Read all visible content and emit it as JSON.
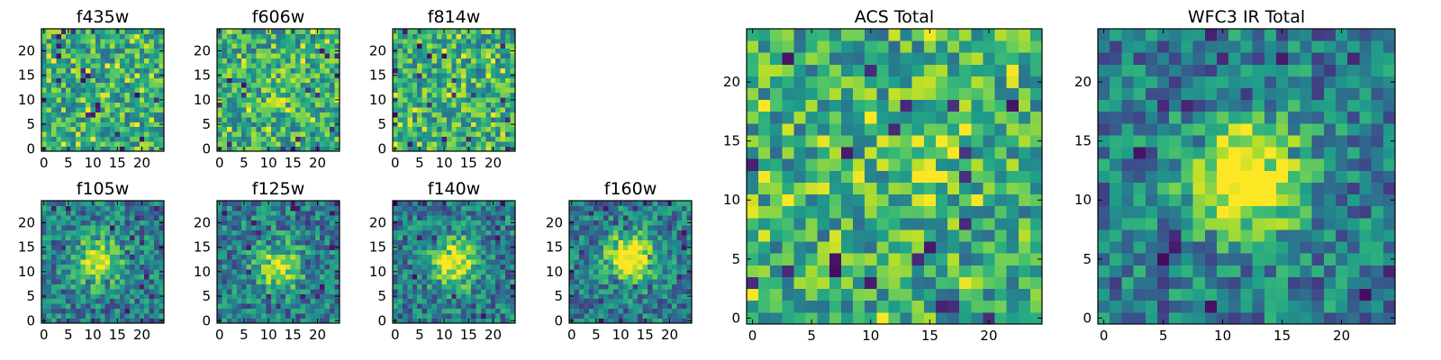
{
  "figure": {
    "background": "#ffffff"
  },
  "colormap": {
    "name": "viridis",
    "stops": [
      "#440154",
      "#482878",
      "#3e4989",
      "#31688e",
      "#26828e",
      "#1f9e89",
      "#35b779",
      "#6ece58",
      "#b5de2b",
      "#fde725"
    ]
  },
  "chart_data": [
    {
      "type": "heatmap",
      "title": "f435w",
      "image_size": [
        25,
        25
      ],
      "profile": "noise",
      "peak_center": [
        12,
        12
      ],
      "peak_strength": 0.0,
      "vmin": 0,
      "vmax": 1,
      "xticks": [
        0,
        5,
        10,
        15,
        20
      ],
      "yticks": [
        0,
        5,
        10,
        15,
        20
      ],
      "origin": "lower",
      "grid": false
    },
    {
      "type": "heatmap",
      "title": "f606w",
      "image_size": [
        25,
        25
      ],
      "profile": "noise",
      "peak_center": [
        12,
        12
      ],
      "peak_strength": 0.1,
      "vmin": 0,
      "vmax": 1,
      "xticks": [
        0,
        5,
        10,
        15,
        20
      ],
      "yticks": [
        0,
        5,
        10,
        15,
        20
      ],
      "origin": "lower",
      "grid": false
    },
    {
      "type": "heatmap",
      "title": "f814w",
      "image_size": [
        25,
        25
      ],
      "profile": "noise",
      "peak_center": [
        12,
        12
      ],
      "peak_strength": 0.1,
      "vmin": 0,
      "vmax": 1,
      "xticks": [
        0,
        5,
        10,
        15,
        20
      ],
      "yticks": [
        0,
        5,
        10,
        15,
        20
      ],
      "origin": "lower",
      "grid": false
    },
    {
      "type": "heatmap",
      "title": "f105w",
      "image_size": [
        25,
        25
      ],
      "profile": "central_source",
      "peak_center": [
        11,
        12
      ],
      "peak_strength": 0.6,
      "vmin": 0,
      "vmax": 1,
      "xticks": [
        0,
        5,
        10,
        15,
        20
      ],
      "yticks": [
        0,
        5,
        10,
        15,
        20
      ],
      "origin": "lower",
      "grid": false
    },
    {
      "type": "heatmap",
      "title": "f125w",
      "image_size": [
        25,
        25
      ],
      "profile": "central_source",
      "peak_center": [
        12,
        11
      ],
      "peak_strength": 0.5,
      "vmin": 0,
      "vmax": 1,
      "xticks": [
        0,
        5,
        10,
        15,
        20
      ],
      "yticks": [
        0,
        5,
        10,
        15,
        20
      ],
      "origin": "lower",
      "grid": false
    },
    {
      "type": "heatmap",
      "title": "f140w",
      "image_size": [
        25,
        25
      ],
      "profile": "central_source",
      "peak_center": [
        12,
        12
      ],
      "peak_strength": 0.65,
      "vmin": 0,
      "vmax": 1,
      "xticks": [
        0,
        5,
        10,
        15,
        20
      ],
      "yticks": [
        0,
        5,
        10,
        15,
        20
      ],
      "origin": "lower",
      "grid": false
    },
    {
      "type": "heatmap",
      "title": "f160w",
      "image_size": [
        25,
        25
      ],
      "profile": "central_source",
      "peak_center": [
        12,
        13
      ],
      "peak_strength": 0.75,
      "vmin": 0,
      "vmax": 1,
      "xticks": [
        0,
        5,
        10,
        15,
        20
      ],
      "yticks": [
        0,
        5,
        10,
        15,
        20
      ],
      "origin": "lower",
      "grid": false
    },
    {
      "type": "heatmap",
      "title": "ACS Total",
      "image_size": [
        25,
        25
      ],
      "profile": "noise",
      "peak_center": [
        15,
        14
      ],
      "peak_strength": 0.15,
      "vmin": 0,
      "vmax": 1,
      "xticks": [
        0,
        5,
        10,
        15,
        20
      ],
      "yticks": [
        0,
        5,
        10,
        15,
        20
      ],
      "origin": "lower",
      "grid": false
    },
    {
      "type": "heatmap",
      "title": "WFC3 IR Total",
      "image_size": [
        25,
        25
      ],
      "profile": "central_source",
      "peak_center": [
        12,
        12
      ],
      "peak_strength": 0.8,
      "vmin": 0,
      "vmax": 1,
      "xticks": [
        0,
        5,
        10,
        15,
        20
      ],
      "yticks": [
        0,
        5,
        10,
        15,
        20
      ],
      "origin": "lower",
      "grid": false
    }
  ]
}
